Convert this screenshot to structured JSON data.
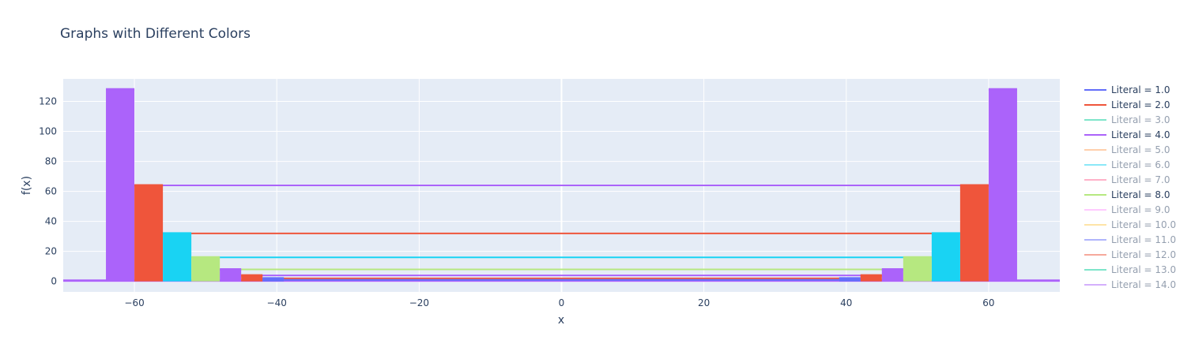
{
  "chart_data": {
    "type": "line",
    "title": "Graphs with Different Colors",
    "xlabel": "x",
    "ylabel": "f(x)",
    "xlim": [
      -70,
      70
    ],
    "ylim": [
      -7,
      135
    ],
    "x_ticks": [
      -60,
      -40,
      -20,
      0,
      20,
      40,
      60
    ],
    "x_tick_labels": [
      "−60",
      "−40",
      "−20",
      "0",
      "20",
      "40",
      "60"
    ],
    "y_ticks": [
      0,
      20,
      40,
      60,
      80,
      100,
      120
    ],
    "y_tick_labels": [
      "0",
      "20",
      "40",
      "60",
      "80",
      "100",
      "120"
    ],
    "grid": true,
    "legend_position": "right",
    "plot_background": "#e5ecf6",
    "series": [
      {
        "name": "Literal = 1.0",
        "color": "#636efa",
        "visible": true,
        "level": 1,
        "band": [
          -45,
          -38
        ],
        "inner": 38
      },
      {
        "name": "Literal = 2.0",
        "color": "#ef553b",
        "visible": true,
        "level": 4,
        "band": [
          -45,
          -42
        ],
        "inner": 42
      },
      {
        "name": "Literal = 3.0",
        "color": "#00cc96",
        "visible": false,
        "level": 2,
        "band": null,
        "inner": 40
      },
      {
        "name": "Literal = 4.0",
        "color": "#ab63fa",
        "visible": true,
        "level": 8,
        "band": [
          -48,
          -45
        ],
        "inner": 45
      },
      {
        "name": "Literal = 5.0",
        "color": "#ffa15a",
        "visible": false,
        "level": 4,
        "band": null,
        "inner": 42
      },
      {
        "name": "Literal = 6.0",
        "color": "#19d3f3",
        "visible": false,
        "level": 16,
        "band": null,
        "inner": 48
      },
      {
        "name": "Literal = 7.0",
        "color": "#ff6692",
        "visible": false,
        "level": 2,
        "band": null,
        "inner": 40
      },
      {
        "name": "Literal = 8.0",
        "color": "#b6e880",
        "visible": true,
        "level": 16,
        "band": [
          -52,
          -48
        ],
        "inner": 48
      },
      {
        "name": "Literal = 9.0",
        "color": "#ff97ff",
        "visible": false,
        "level": 1,
        "band": null,
        "inner": 38
      },
      {
        "name": "Literal = 10.0",
        "color": "#fecb52",
        "visible": false,
        "level": 2,
        "band": null,
        "inner": 40
      },
      {
        "name": "Literal = 11.0",
        "color": "#636efa",
        "visible": false,
        "level": 1,
        "band": null,
        "inner": 38
      },
      {
        "name": "Literal = 12.0",
        "color": "#ef553b",
        "visible": false,
        "level": 64,
        "band": null,
        "inner": 56
      },
      {
        "name": "Literal = 13.0",
        "color": "#00cc96",
        "visible": false,
        "level": 1,
        "band": null,
        "inner": 38
      },
      {
        "name": "Literal = 14.0",
        "color": "#ab63fa",
        "visible": false,
        "level": 128,
        "band": null,
        "inner": 60
      }
    ],
    "blocks": [
      {
        "color": "#ab63fa",
        "x": [
          -64,
          -60
        ],
        "y": 128,
        "line": null
      },
      {
        "color": "#ef553b",
        "x": [
          -60,
          -56
        ],
        "y": 64,
        "line": 64,
        "line_color": "#ab63fa"
      },
      {
        "color": "#19d3f3",
        "x": [
          -56,
          -52
        ],
        "y": 32,
        "line": 32,
        "line_color": "#ef553b"
      },
      {
        "color": "#b6e880",
        "x": [
          -52,
          -48
        ],
        "y": 16,
        "line": 16,
        "line_color": "#19d3f3"
      },
      {
        "color": "#ab63fa",
        "x": [
          -48,
          -45
        ],
        "y": 8,
        "line": 8,
        "line_color": "#b6e880"
      },
      {
        "color": "#ef553b",
        "x": [
          -45,
          -42
        ],
        "y": 4,
        "line": 4,
        "line_color": "#ab63fa"
      },
      {
        "color": "#636efa",
        "x": [
          -42,
          -39
        ],
        "y": 2,
        "line": 2,
        "line_color": "#ef553b"
      }
    ],
    "base_line": {
      "color": "#ab63fa",
      "y": 0.5
    },
    "middle_line": {
      "color": "#636efa",
      "y": 1
    }
  }
}
